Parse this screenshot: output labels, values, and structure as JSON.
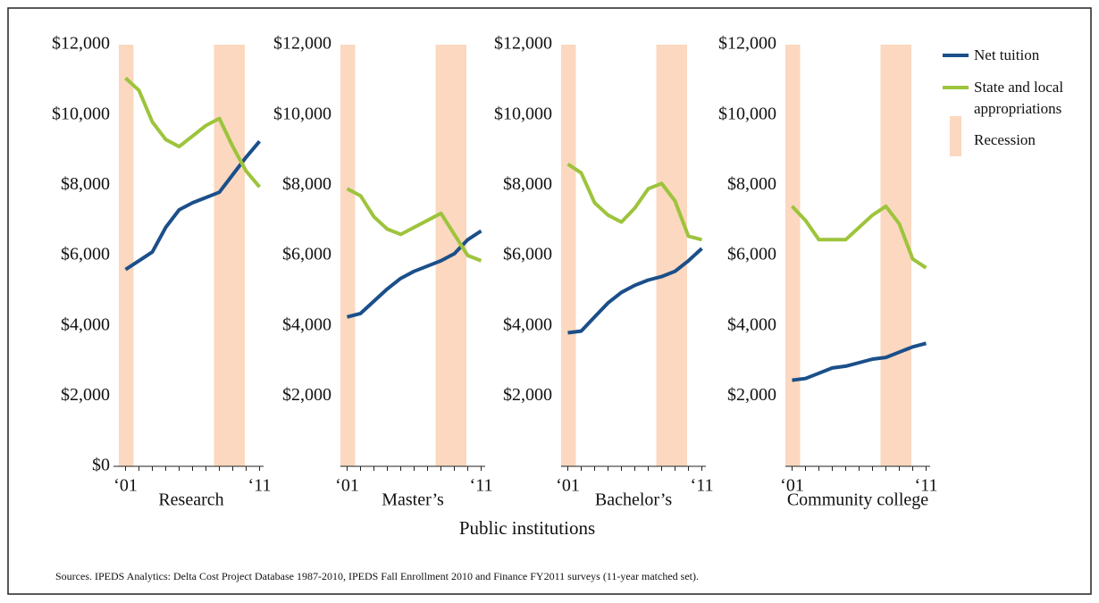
{
  "chart_data": [
    {
      "type": "line",
      "title": "Research",
      "x": [
        2001,
        2002,
        2003,
        2004,
        2005,
        2006,
        2007,
        2008,
        2009,
        2010,
        2011
      ],
      "xlim": [
        2000.5,
        2011.3
      ],
      "xticks": [
        {
          "value": 2001,
          "label": "‘01"
        },
        {
          "value": 2011,
          "label": "‘11"
        }
      ],
      "ylim": [
        0,
        12000
      ],
      "yticks": [
        {
          "value": 0,
          "label": "$0"
        },
        {
          "value": 2000,
          "label": "$2,000"
        },
        {
          "value": 4000,
          "label": "$4,000"
        },
        {
          "value": 6000,
          "label": "$6,000"
        },
        {
          "value": 8000,
          "label": "$8,000"
        },
        {
          "value": 10000,
          "label": "$10,000"
        },
        {
          "value": 12000,
          "label": "$12,000"
        }
      ],
      "recession_label": "Recession",
      "recession_color": "#fbd8bf",
      "recessions": [
        [
          2000.5,
          2001.6
        ],
        [
          2007.6,
          2009.9
        ]
      ],
      "series": [
        {
          "name": "Net tuition",
          "color": "#1b4f8a",
          "values": [
            5600,
            5850,
            6100,
            6800,
            7300,
            7500,
            7650,
            7800,
            8300,
            8800,
            9250
          ]
        },
        {
          "name": "State and local appropriations",
          "color": "#9dc43c",
          "values": [
            11050,
            10700,
            9800,
            9300,
            9100,
            9400,
            9700,
            9900,
            9100,
            8400,
            7950
          ]
        }
      ]
    },
    {
      "type": "line",
      "title": "Master’s",
      "x": [
        2001,
        2002,
        2003,
        2004,
        2005,
        2006,
        2007,
        2008,
        2009,
        2010,
        2011
      ],
      "xlim": [
        2000.5,
        2011.3
      ],
      "xticks": [
        {
          "value": 2001,
          "label": "‘01"
        },
        {
          "value": 2011,
          "label": "‘11"
        }
      ],
      "ylim": [
        0,
        12000
      ],
      "yticks": [
        {
          "value": 2000,
          "label": "$2,000"
        },
        {
          "value": 4000,
          "label": "$4,000"
        },
        {
          "value": 6000,
          "label": "$6,000"
        },
        {
          "value": 8000,
          "label": "$8,000"
        },
        {
          "value": 10000,
          "label": "$10,000"
        },
        {
          "value": 12000,
          "label": "$12,000"
        }
      ],
      "recession_color": "#fbd8bf",
      "recessions": [
        [
          2000.5,
          2001.6
        ],
        [
          2007.6,
          2009.9
        ]
      ],
      "series": [
        {
          "name": "Net tuition",
          "color": "#1b4f8a",
          "values": [
            4250,
            4350,
            4700,
            5050,
            5350,
            5550,
            5700,
            5850,
            6050,
            6450,
            6700
          ]
        },
        {
          "name": "State and local appropriations",
          "color": "#9dc43c",
          "values": [
            7900,
            7700,
            7100,
            6750,
            6600,
            6800,
            7000,
            7200,
            6600,
            6000,
            5850
          ]
        }
      ]
    },
    {
      "type": "line",
      "title": "Bachelor’s",
      "x": [
        2001,
        2002,
        2003,
        2004,
        2005,
        2006,
        2007,
        2008,
        2009,
        2010,
        2011
      ],
      "xlim": [
        2000.5,
        2011.3
      ],
      "xticks": [
        {
          "value": 2001,
          "label": "‘01"
        },
        {
          "value": 2011,
          "label": "‘11"
        }
      ],
      "ylim": [
        0,
        12000
      ],
      "yticks": [
        {
          "value": 2000,
          "label": "$2,000"
        },
        {
          "value": 4000,
          "label": "$4,000"
        },
        {
          "value": 6000,
          "label": "$6,000"
        },
        {
          "value": 8000,
          "label": "$8,000"
        },
        {
          "value": 10000,
          "label": "$10,000"
        },
        {
          "value": 12000,
          "label": "$12,000"
        }
      ],
      "recession_color": "#fbd8bf",
      "recessions": [
        [
          2000.5,
          2001.6
        ],
        [
          2007.6,
          2009.9
        ]
      ],
      "series": [
        {
          "name": "Net tuition",
          "color": "#1b4f8a",
          "values": [
            3800,
            3850,
            4250,
            4650,
            4950,
            5150,
            5300,
            5400,
            5550,
            5850,
            6200
          ]
        },
        {
          "name": "State and local appropriations",
          "color": "#9dc43c",
          "values": [
            8600,
            8350,
            7500,
            7150,
            6950,
            7350,
            7900,
            8050,
            7550,
            6550,
            6450
          ]
        }
      ]
    },
    {
      "type": "line",
      "title": "Community college",
      "x": [
        2001,
        2002,
        2003,
        2004,
        2005,
        2006,
        2007,
        2008,
        2009,
        2010,
        2011
      ],
      "xlim": [
        2000.5,
        2011.3
      ],
      "xticks": [
        {
          "value": 2001,
          "label": "‘01"
        },
        {
          "value": 2011,
          "label": "‘11"
        }
      ],
      "ylim": [
        0,
        12000
      ],
      "yticks": [
        {
          "value": 2000,
          "label": "$2,000"
        },
        {
          "value": 4000,
          "label": "$4,000"
        },
        {
          "value": 6000,
          "label": "$6,000"
        },
        {
          "value": 8000,
          "label": "$8,000"
        },
        {
          "value": 10000,
          "label": "$10,000"
        },
        {
          "value": 12000,
          "label": "$12,000"
        }
      ],
      "recession_color": "#fbd8bf",
      "recessions": [
        [
          2000.5,
          2001.6
        ],
        [
          2007.6,
          2009.9
        ]
      ],
      "series": [
        {
          "name": "Net tuition",
          "color": "#1b4f8a",
          "values": [
            2450,
            2500,
            2650,
            2800,
            2850,
            2950,
            3050,
            3100,
            3250,
            3400,
            3500
          ]
        },
        {
          "name": "State and local appropriations",
          "color": "#9dc43c",
          "values": [
            7400,
            7000,
            6450,
            6450,
            6450,
            6800,
            7150,
            7400,
            6900,
            5900,
            5650
          ]
        }
      ]
    }
  ],
  "xlabel": "Public institutions",
  "source": "Sources. IPEDS Analytics: Delta Cost Project Database 1987-2010, IPEDS Fall Enrollment 2010 and Finance FY2011 surveys (11-year matched set)."
}
